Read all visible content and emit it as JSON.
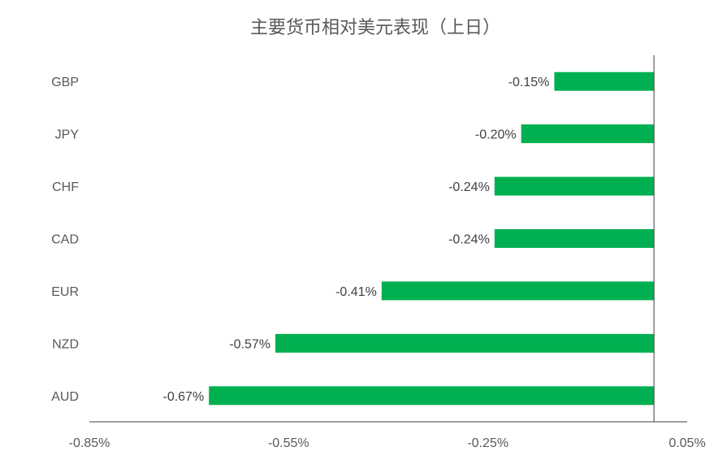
{
  "chart_data": {
    "type": "bar",
    "orientation": "horizontal",
    "title": "主要货币相对美元表现（上日）",
    "categories": [
      "GBP",
      "JPY",
      "CHF",
      "CAD",
      "EUR",
      "NZD",
      "AUD"
    ],
    "values": [
      -0.15,
      -0.2,
      -0.24,
      -0.24,
      -0.41,
      -0.57,
      -0.67
    ],
    "data_labels": [
      "-0.15%",
      "-0.20%",
      "-0.24%",
      "-0.24%",
      "-0.41%",
      "-0.57%",
      "-0.67%"
    ],
    "x_ticks": [
      -0.85,
      -0.55,
      -0.25,
      0.05
    ],
    "x_tick_labels": [
      "-0.85%",
      "-0.55%",
      "-0.25%",
      "0.05%"
    ],
    "xlim": [
      -0.85,
      0.05
    ],
    "xlabel": "",
    "ylabel": "",
    "grid": false,
    "legend": "none",
    "bar_color": "#00b050"
  }
}
